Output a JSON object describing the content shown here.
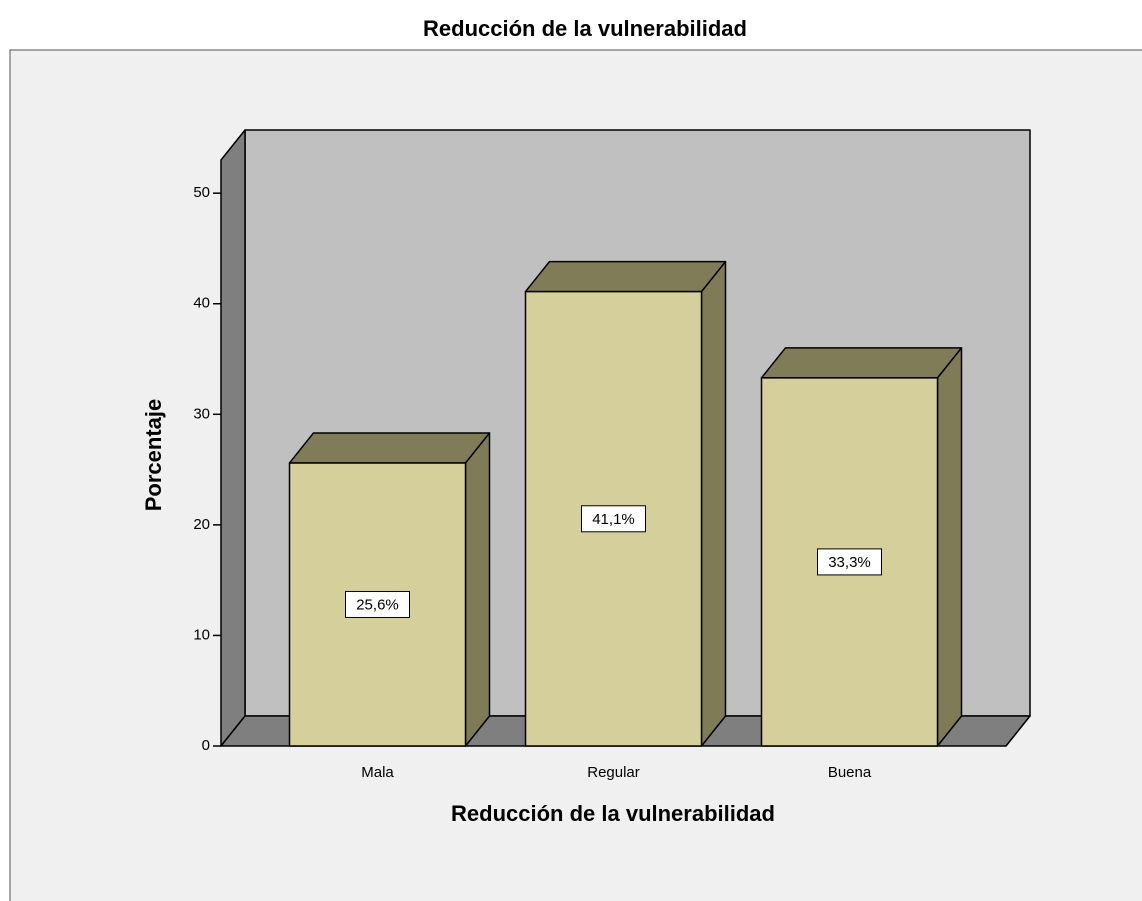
{
  "chart_data": {
    "type": "bar3d",
    "title": "Reducción de la vulnerabilidad",
    "x_label": "Reducción de la vulnerabilidad",
    "y_label": "Porcentaje",
    "categories": [
      "Mala",
      "Regular",
      "Buena"
    ],
    "values": [
      25.6,
      41.1,
      33.3
    ],
    "value_labels": [
      "25,6%",
      "41,1%",
      "33,3%"
    ],
    "color": "#d4cf9b",
    "ylim": [
      0,
      53
    ],
    "yticks": [
      0,
      10,
      20,
      30,
      40,
      50
    ]
  }
}
